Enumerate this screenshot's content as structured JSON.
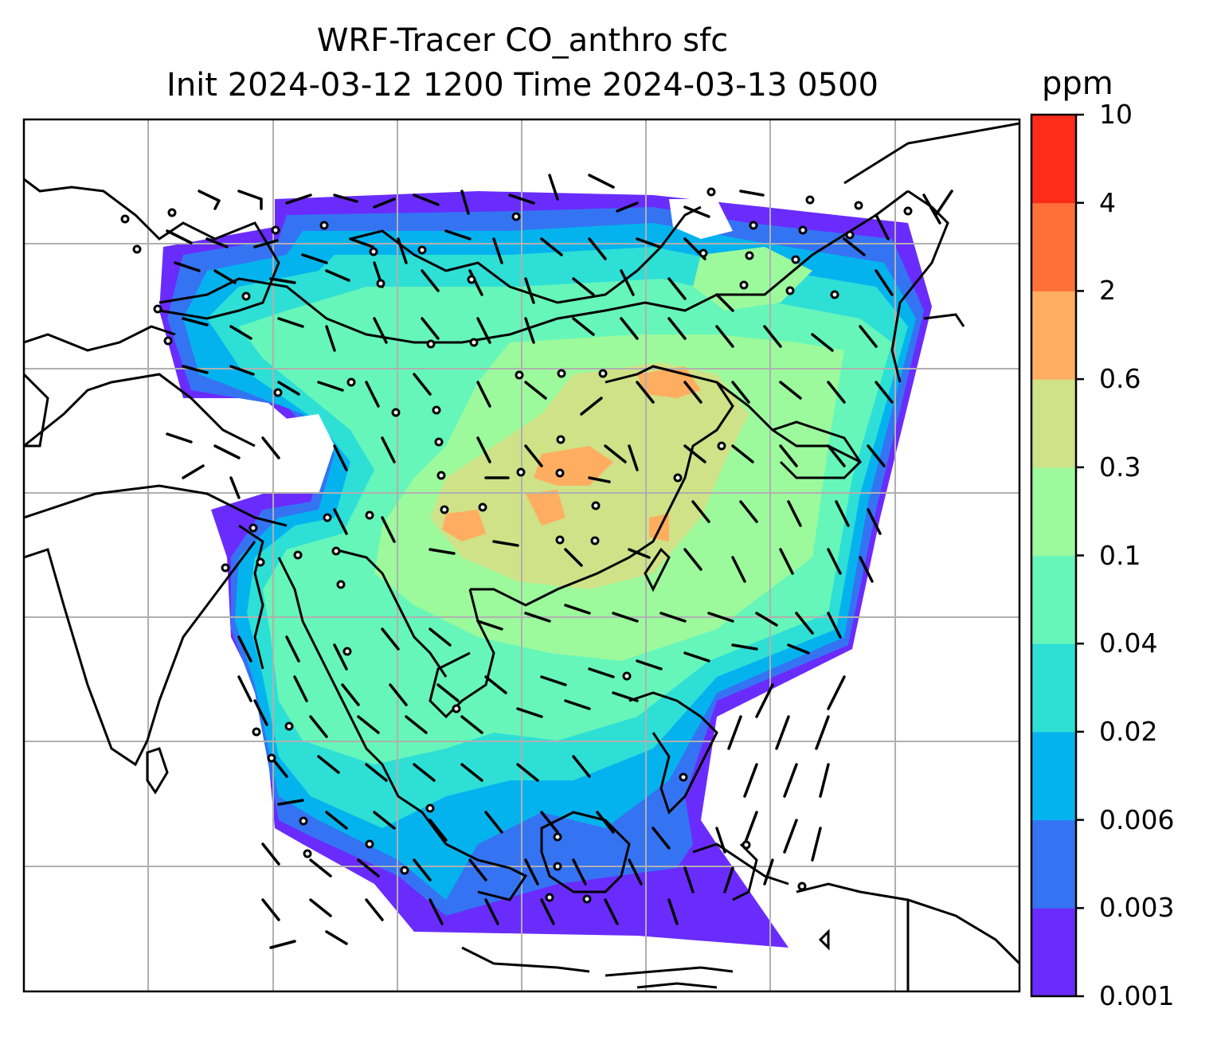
{
  "title": {
    "line1": "WRF-Tracer CO_anthro sfc",
    "line2": "Init 2024-03-12 1200 Time 2024-03-13 0500"
  },
  "colorbar": {
    "units": "ppm",
    "levels": [
      "0.001",
      "0.003",
      "0.006",
      "0.02",
      "0.04",
      "0.1",
      "0.3",
      "0.6",
      "2",
      "4",
      "10"
    ],
    "colors": [
      "#6a2cfd",
      "#3474f3",
      "#04b3ee",
      "#2edfd6",
      "#66f6b9",
      "#9cfa9c",
      "#cfe288",
      "#ffae61",
      "#ff7038",
      "#ff2c18"
    ]
  },
  "map": {
    "content": "Surface CO anthropogenic tracer concentration with wind barbs over South/Southeast/East Asia",
    "gridlines": true,
    "coastlines": true
  }
}
